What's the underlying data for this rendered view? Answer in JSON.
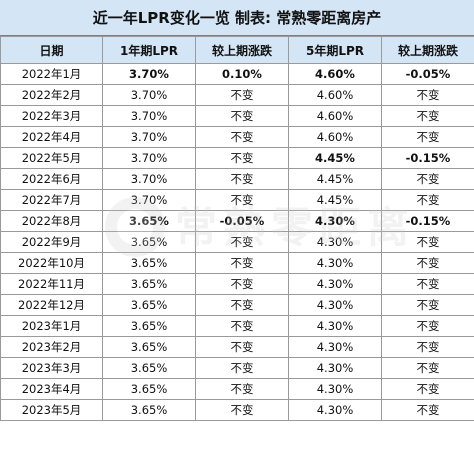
{
  "title": "近一年LPR变化一览 制表: 常熟零距离房产",
  "columns": [
    "日期",
    "1年期LPR",
    "较上期涨跌",
    "5年期LPR",
    "较上期涨跌"
  ],
  "rows": [
    {
      "date": "2022年1月",
      "lpr1": "3.70%",
      "chg1": "0.10%",
      "lpr5": "4.60%",
      "chg5": "-0.05%",
      "hl1": true,
      "hlc1": true,
      "hl5": true,
      "hlc5": true
    },
    {
      "date": "2022年2月",
      "lpr1": "3.70%",
      "chg1": "不变",
      "lpr5": "4.60%",
      "chg5": "不变"
    },
    {
      "date": "2022年3月",
      "lpr1": "3.70%",
      "chg1": "不变",
      "lpr5": "4.60%",
      "chg5": "不变"
    },
    {
      "date": "2022年4月",
      "lpr1": "3.70%",
      "chg1": "不变",
      "lpr5": "4.60%",
      "chg5": "不变"
    },
    {
      "date": "2022年5月",
      "lpr1": "3.70%",
      "chg1": "不变",
      "lpr5": "4.45%",
      "chg5": "-0.15%",
      "hl5": true,
      "hlc5": true
    },
    {
      "date": "2022年6月",
      "lpr1": "3.70%",
      "chg1": "不变",
      "lpr5": "4.45%",
      "chg5": "不变"
    },
    {
      "date": "2022年7月",
      "lpr1": "3.70%",
      "chg1": "不变",
      "lpr5": "4.45%",
      "chg5": "不变"
    },
    {
      "date": "2022年8月",
      "lpr1": "3.65%",
      "chg1": "-0.05%",
      "lpr5": "4.30%",
      "chg5": "-0.15%",
      "hl1": true,
      "hlc1": true,
      "hl5": true,
      "hlc5": true
    },
    {
      "date": "2022年9月",
      "lpr1": "3.65%",
      "chg1": "不变",
      "lpr5": "4.30%",
      "chg5": "不变"
    },
    {
      "date": "2022年10月",
      "lpr1": "3.65%",
      "chg1": "不变",
      "lpr5": "4.30%",
      "chg5": "不变"
    },
    {
      "date": "2022年11月",
      "lpr1": "3.65%",
      "chg1": "不变",
      "lpr5": "4.30%",
      "chg5": "不变"
    },
    {
      "date": "2022年12月",
      "lpr1": "3.65%",
      "chg1": "不变",
      "lpr5": "4.30%",
      "chg5": "不变"
    },
    {
      "date": "2023年1月",
      "lpr1": "3.65%",
      "chg1": "不变",
      "lpr5": "4.30%",
      "chg5": "不变"
    },
    {
      "date": "2023年2月",
      "lpr1": "3.65%",
      "chg1": "不变",
      "lpr5": "4.30%",
      "chg5": "不变"
    },
    {
      "date": "2023年3月",
      "lpr1": "3.65%",
      "chg1": "不变",
      "lpr5": "4.30%",
      "chg5": "不变"
    },
    {
      "date": "2023年4月",
      "lpr1": "3.65%",
      "chg1": "不变",
      "lpr5": "4.30%",
      "chg5": "不变"
    },
    {
      "date": "2023年5月",
      "lpr1": "3.65%",
      "chg1": "不变",
      "lpr5": "4.30%",
      "chg5": "不变"
    }
  ],
  "watermark_text": "常熟零距离",
  "colors": {
    "header_bg": "#d4e6f6",
    "highlight": "#ff0000",
    "grid": "#9a9a9a"
  }
}
